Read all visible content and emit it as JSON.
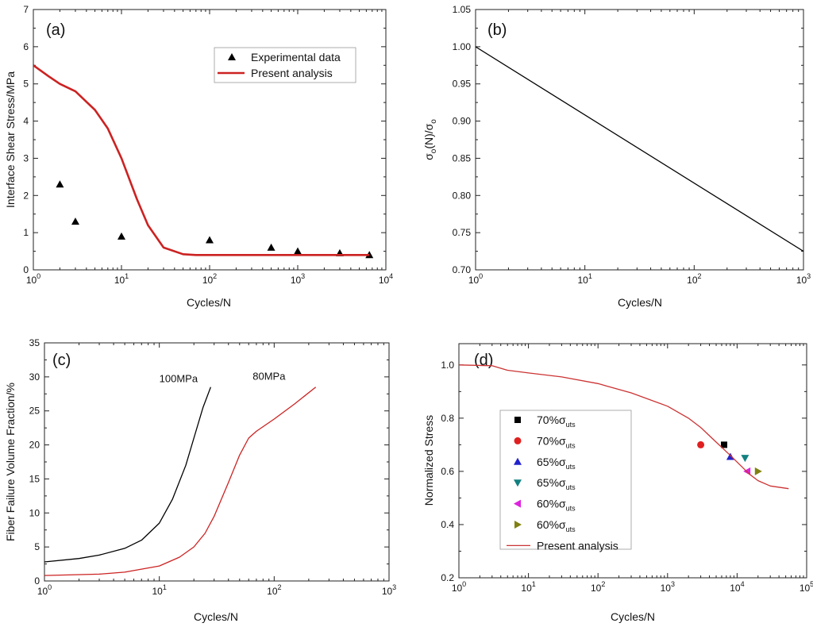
{
  "chart_data": [
    {
      "panel": "(a)",
      "type": "line+scatter",
      "xscale": "log",
      "xlim": [
        1,
        10000
      ],
      "ylim": [
        0,
        7
      ],
      "xticks": [
        1,
        10,
        100,
        1000,
        10000
      ],
      "xtick_labels": [
        [
          "10",
          "0"
        ],
        [
          "10",
          "1"
        ],
        [
          "10",
          "2"
        ],
        [
          "10",
          "3"
        ],
        [
          "10",
          "4"
        ]
      ],
      "yticks": [
        0,
        1,
        2,
        3,
        4,
        5,
        6,
        7
      ],
      "ytick_labels": [
        "0",
        "1",
        "2",
        "3",
        "4",
        "5",
        "6",
        "7"
      ],
      "xlabel": "Cycles/N",
      "ylabel": "Interface Shear Stress/MPa",
      "legend_position": "top-right",
      "series": [
        {
          "name": "Experimental data",
          "kind": "scatter",
          "marker": "triangle",
          "color": "#000000",
          "x": [
            2,
            3,
            10,
            100,
            500,
            1000,
            3000,
            6500
          ],
          "y": [
            2.3,
            1.3,
            0.9,
            0.8,
            0.6,
            0.5,
            0.45,
            0.4
          ]
        },
        {
          "name": "Present analysis",
          "kind": "line",
          "color": "#cc2222",
          "x": [
            1,
            1.5,
            2,
            3,
            5,
            7,
            10,
            15,
            20,
            30,
            50,
            70,
            100,
            1000,
            6500
          ],
          "y": [
            5.5,
            5.2,
            5.0,
            4.8,
            4.3,
            3.8,
            3.0,
            1.9,
            1.2,
            0.6,
            0.42,
            0.4,
            0.4,
            0.4,
            0.4
          ]
        }
      ]
    },
    {
      "panel": "(b)",
      "type": "line",
      "xscale": "log",
      "xlim": [
        1,
        1000
      ],
      "ylim": [
        0.7,
        1.05
      ],
      "xticks": [
        1,
        10,
        100,
        1000
      ],
      "xtick_labels": [
        [
          "10",
          "0"
        ],
        [
          "10",
          "1"
        ],
        [
          "10",
          "2"
        ],
        [
          "10",
          "3"
        ]
      ],
      "yticks": [
        0.7,
        0.75,
        0.8,
        0.85,
        0.9,
        0.95,
        1.0,
        1.05
      ],
      "ytick_labels": [
        "0.70",
        "0.75",
        "0.80",
        "0.85",
        "0.90",
        "0.95",
        "1.00",
        "1.05"
      ],
      "xlabel": "Cycles/N",
      "ylabel_parts": [
        "σ",
        "o",
        "(N)/σ",
        "o"
      ],
      "series": [
        {
          "name": "σo(N)/σo",
          "kind": "line",
          "color": "#000000",
          "x": [
            1,
            1000
          ],
          "y": [
            1.0,
            0.725
          ]
        }
      ]
    },
    {
      "panel": "(c)",
      "type": "line",
      "xscale": "log",
      "xlim": [
        1,
        1000
      ],
      "ylim": [
        0,
        35
      ],
      "xticks": [
        1,
        10,
        100,
        1000
      ],
      "xtick_labels": [
        [
          "10",
          "0"
        ],
        [
          "10",
          "1"
        ],
        [
          "10",
          "2"
        ],
        [
          "10",
          "3"
        ]
      ],
      "yticks": [
        0,
        5,
        10,
        15,
        20,
        25,
        30,
        35
      ],
      "ytick_labels": [
        "0",
        "5",
        "10",
        "15",
        "20",
        "25",
        "30",
        "35"
      ],
      "xlabel": "Cycles/N",
      "ylabel": "Fiber Failure Volume Fraction/%",
      "series": [
        {
          "name": "100MPa",
          "kind": "line",
          "color": "#000000",
          "x": [
            1,
            2,
            3,
            5,
            7,
            10,
            13,
            17,
            20,
            24,
            28
          ],
          "y": [
            2.8,
            3.3,
            3.8,
            4.8,
            6.0,
            8.5,
            12.0,
            17.0,
            21.0,
            25.5,
            28.5
          ]
        },
        {
          "name": "80MPa",
          "kind": "line",
          "color": "#cc2222",
          "x": [
            1,
            3,
            5,
            10,
            15,
            20,
            25,
            30,
            40,
            50,
            60,
            70,
            100,
            150,
            230
          ],
          "y": [
            0.8,
            1.0,
            1.3,
            2.2,
            3.5,
            5.0,
            7.0,
            9.5,
            14.5,
            18.5,
            21.0,
            22.0,
            23.8,
            26.0,
            28.5
          ]
        }
      ],
      "annotations": [
        {
          "text": "100MPa",
          "x": 10,
          "y": 29.2
        },
        {
          "text": "80MPa",
          "x": 65,
          "y": 29.6
        }
      ]
    },
    {
      "panel": "(d)",
      "type": "line+scatter",
      "xscale": "log",
      "xlim": [
        1,
        100000
      ],
      "ylim": [
        0.2,
        1.08
      ],
      "xticks": [
        1,
        10,
        100,
        1000,
        10000,
        100000
      ],
      "xtick_labels": [
        [
          "10",
          "0"
        ],
        [
          "10",
          "1"
        ],
        [
          "10",
          "2"
        ],
        [
          "10",
          "3"
        ],
        [
          "10",
          "4"
        ],
        [
          "10",
          "5"
        ]
      ],
      "yticks": [
        0.2,
        0.4,
        0.6,
        0.8,
        1.0
      ],
      "ytick_labels": [
        "0.2",
        "0.4",
        "0.6",
        "0.8",
        "1.0"
      ],
      "xlabel": "Cycles/N",
      "ylabel": "Normalized Stress",
      "legend_position": "bottom-left",
      "series": [
        {
          "name_parts": [
            "70%σ",
            "uts"
          ],
          "kind": "scatter",
          "marker": "square",
          "color": "#000000",
          "x": [
            6500
          ],
          "y": [
            0.7
          ]
        },
        {
          "name_parts": [
            "70%σ",
            "uts"
          ],
          "kind": "scatter",
          "marker": "circle",
          "color": "#e02020",
          "x": [
            3000
          ],
          "y": [
            0.7
          ]
        },
        {
          "name_parts": [
            "65%σ",
            "uts"
          ],
          "kind": "scatter",
          "marker": "triangle-up",
          "color": "#2222cc",
          "x": [
            8000
          ],
          "y": [
            0.655
          ]
        },
        {
          "name_parts": [
            "65%σ",
            "uts"
          ],
          "kind": "scatter",
          "marker": "triangle-down",
          "color": "#128080",
          "x": [
            13000
          ],
          "y": [
            0.65
          ]
        },
        {
          "name_parts": [
            "60%σ",
            "uts"
          ],
          "kind": "scatter",
          "marker": "triangle-left",
          "color": "#dd22dd",
          "x": [
            14000
          ],
          "y": [
            0.6
          ]
        },
        {
          "name_parts": [
            "60%σ",
            "uts"
          ],
          "kind": "scatter",
          "marker": "triangle-right",
          "color": "#808010",
          "x": [
            20000
          ],
          "y": [
            0.6
          ]
        },
        {
          "name": "Present analysis",
          "kind": "line",
          "color": "#cc3333",
          "x": [
            1,
            3,
            5,
            10,
            30,
            100,
            300,
            1000,
            2000,
            3000,
            5000,
            8000,
            10000,
            15000,
            20000,
            30000,
            55000
          ],
          "y": [
            1.0,
            0.997,
            0.98,
            0.97,
            0.955,
            0.93,
            0.895,
            0.845,
            0.8,
            0.765,
            0.71,
            0.66,
            0.635,
            0.59,
            0.565,
            0.545,
            0.535
          ]
        }
      ]
    }
  ]
}
